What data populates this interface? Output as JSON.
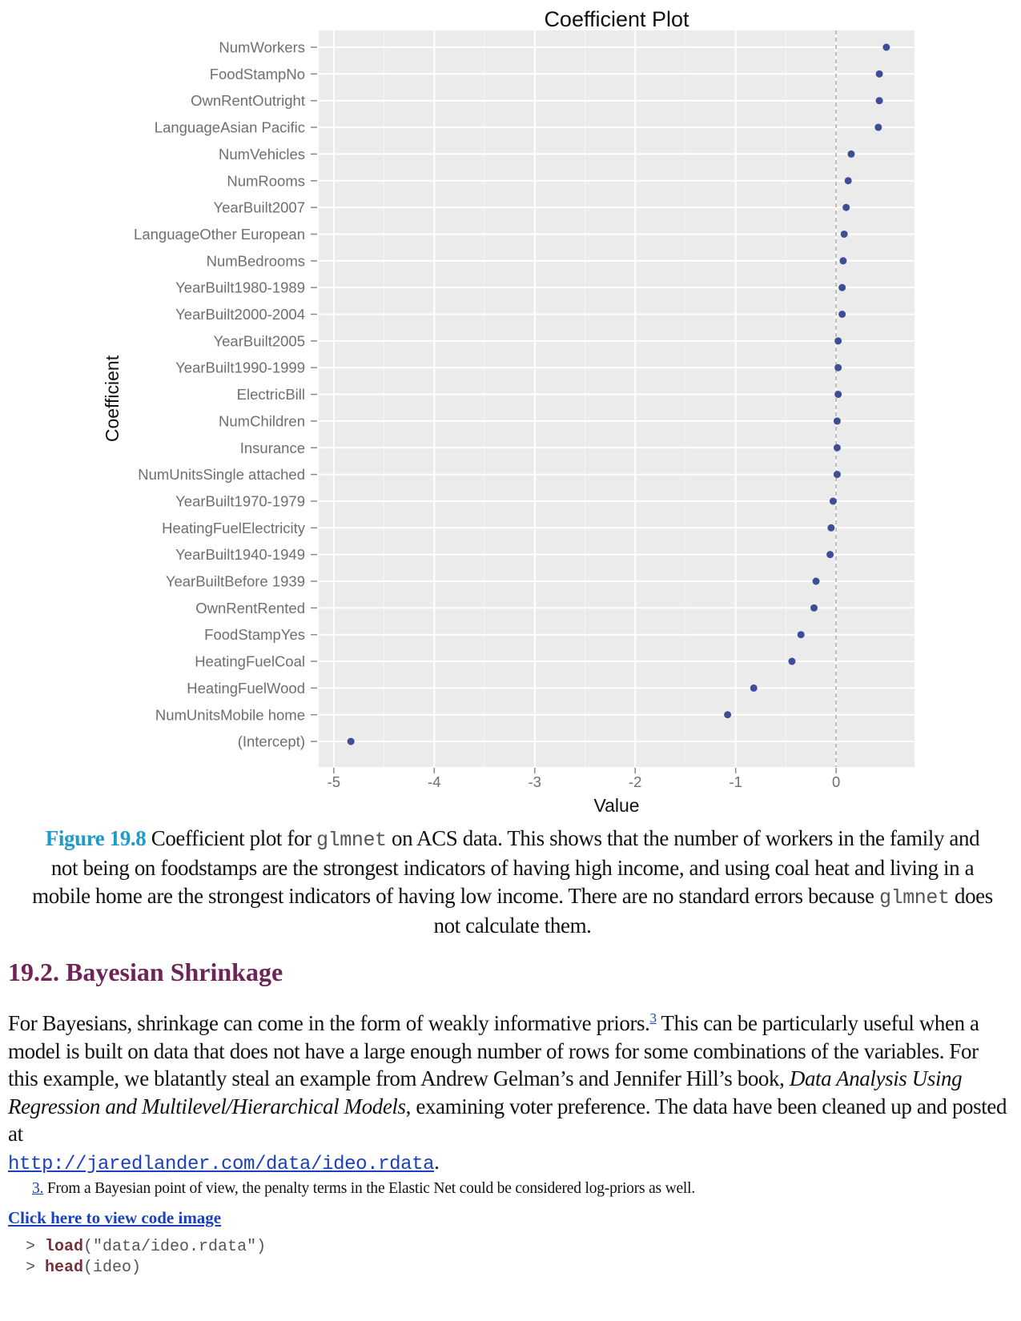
{
  "chart_data": {
    "type": "scatter",
    "title": "Coefficient Plot",
    "xlabel": "Value",
    "ylabel": "Coefficient",
    "xlim": [
      -5.15,
      0.78
    ],
    "xticks": [
      -5,
      -4,
      -3,
      -2,
      -1,
      0
    ],
    "xtick_labels": [
      "-5",
      "-4",
      "-3",
      "-2",
      "-1",
      "0"
    ],
    "reference_line_x": 0,
    "grid": true,
    "colors": {
      "panel": "#ebebeb",
      "grid": "#ffffff",
      "point": "#3d4e96",
      "reference_line": "#a9a9a9"
    },
    "categories": [
      "NumWorkers",
      "FoodStampNo",
      "OwnRentOutright",
      "LanguageAsian Pacific",
      "NumVehicles",
      "NumRooms",
      "YearBuilt2007",
      "LanguageOther European",
      "NumBedrooms",
      "YearBuilt1980-1989",
      "YearBuilt2000-2004",
      "YearBuilt2005",
      "YearBuilt1990-1999",
      "ElectricBill",
      "NumChildren",
      "Insurance",
      "NumUnitsSingle attached",
      "YearBuilt1970-1979",
      "HeatingFuelElectricity",
      "YearBuilt1940-1949",
      "YearBuiltBefore 1939",
      "OwnRentRented",
      "FoodStampYes",
      "HeatingFuelCoal",
      "HeatingFuelWood",
      "NumUnitsMobile home",
      "(Intercept)"
    ],
    "values": [
      0.5,
      0.43,
      0.43,
      0.42,
      0.15,
      0.12,
      0.1,
      0.08,
      0.07,
      0.06,
      0.06,
      0.02,
      0.02,
      0.02,
      0.01,
      0.01,
      0.01,
      -0.03,
      -0.05,
      -0.06,
      -0.2,
      -0.22,
      -0.35,
      -0.44,
      -0.82,
      -1.08,
      -4.83
    ]
  },
  "caption": {
    "label": "Figure 19.8",
    "text_before_code": " Coefficient plot for ",
    "code_1": "glmnet",
    "text_after_code": " on ACS data. This shows that the number of workers in the family and not being on foodstamps are the strongest indicators of having high income, and using coal heat and living in a mobile home are the strongest indicators of having low income. There are no standard errors because ",
    "code_2": "glmnet",
    "text_end": " does not calculate them."
  },
  "section": {
    "title": "19.2. Bayesian Shrinkage"
  },
  "paragraph": {
    "text_1": "For Bayesians, shrinkage can come in the form of weakly informative priors.",
    "footnote_ref": "3",
    "text_2": " This can be particularly useful when a model is built on data that does not have a large enough number of rows for some combinations of the variables. For this example, we blatantly steal an example from Andrew Gelman’s and Jennifer Hill’s book, ",
    "book_title": "Data Analysis Using Regression and Multilevel/Hierarchical Models",
    "text_3": ", examining voter preference. The data have been cleaned up and posted at",
    "url": "http://jaredlander.com/data/ideo.rdata",
    "url_suffix": "."
  },
  "footnote": {
    "number": "3.",
    "text": " From a Bayesian point of view, the penalty terms in the Elastic Net could be considered log-priors as well."
  },
  "code_link": "Click here to view code image",
  "code": {
    "line1_prompt": "> ",
    "line1_fn": "load",
    "line1_args": "(\"data/ideo.rdata\")",
    "line2_prompt": "> ",
    "line2_fn": "head",
    "line2_args": "(ideo)"
  }
}
